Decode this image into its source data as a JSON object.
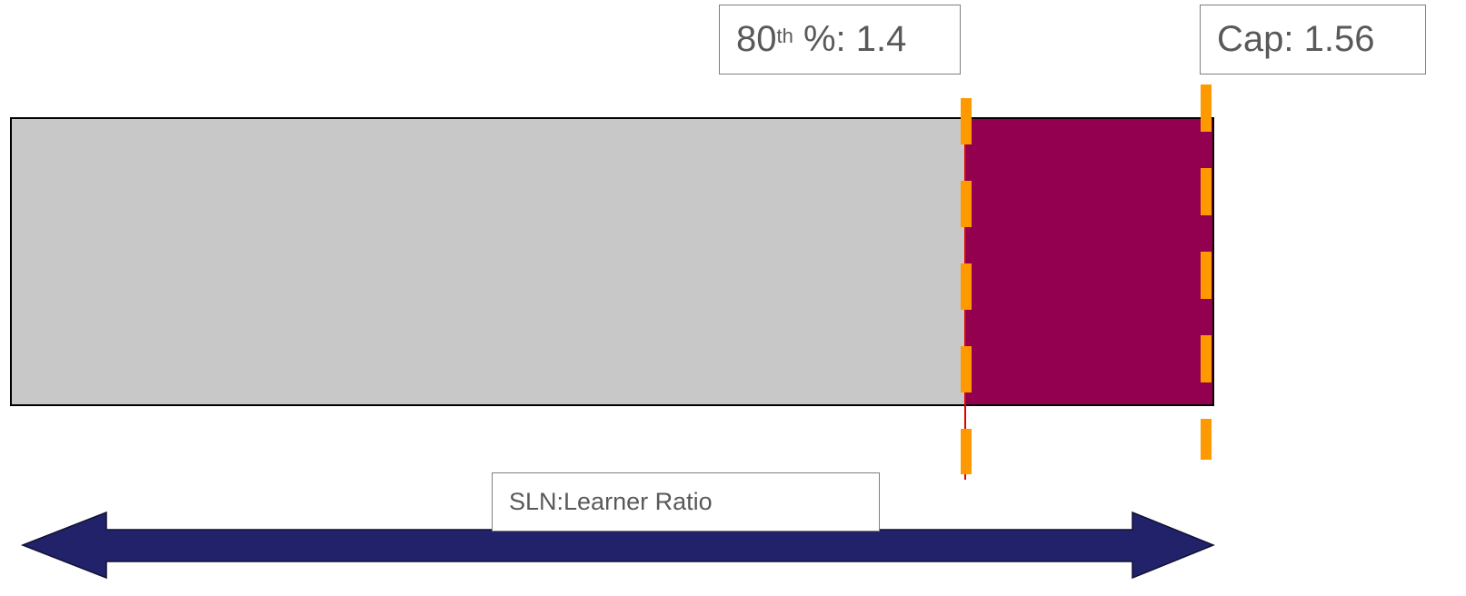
{
  "markers": [
    {
      "number": "80",
      "superscript": "th",
      "text": " %: 1.4"
    },
    {
      "text": "Cap: 1.56"
    }
  ],
  "axis_label": "SLN:Learner Ratio"
}
